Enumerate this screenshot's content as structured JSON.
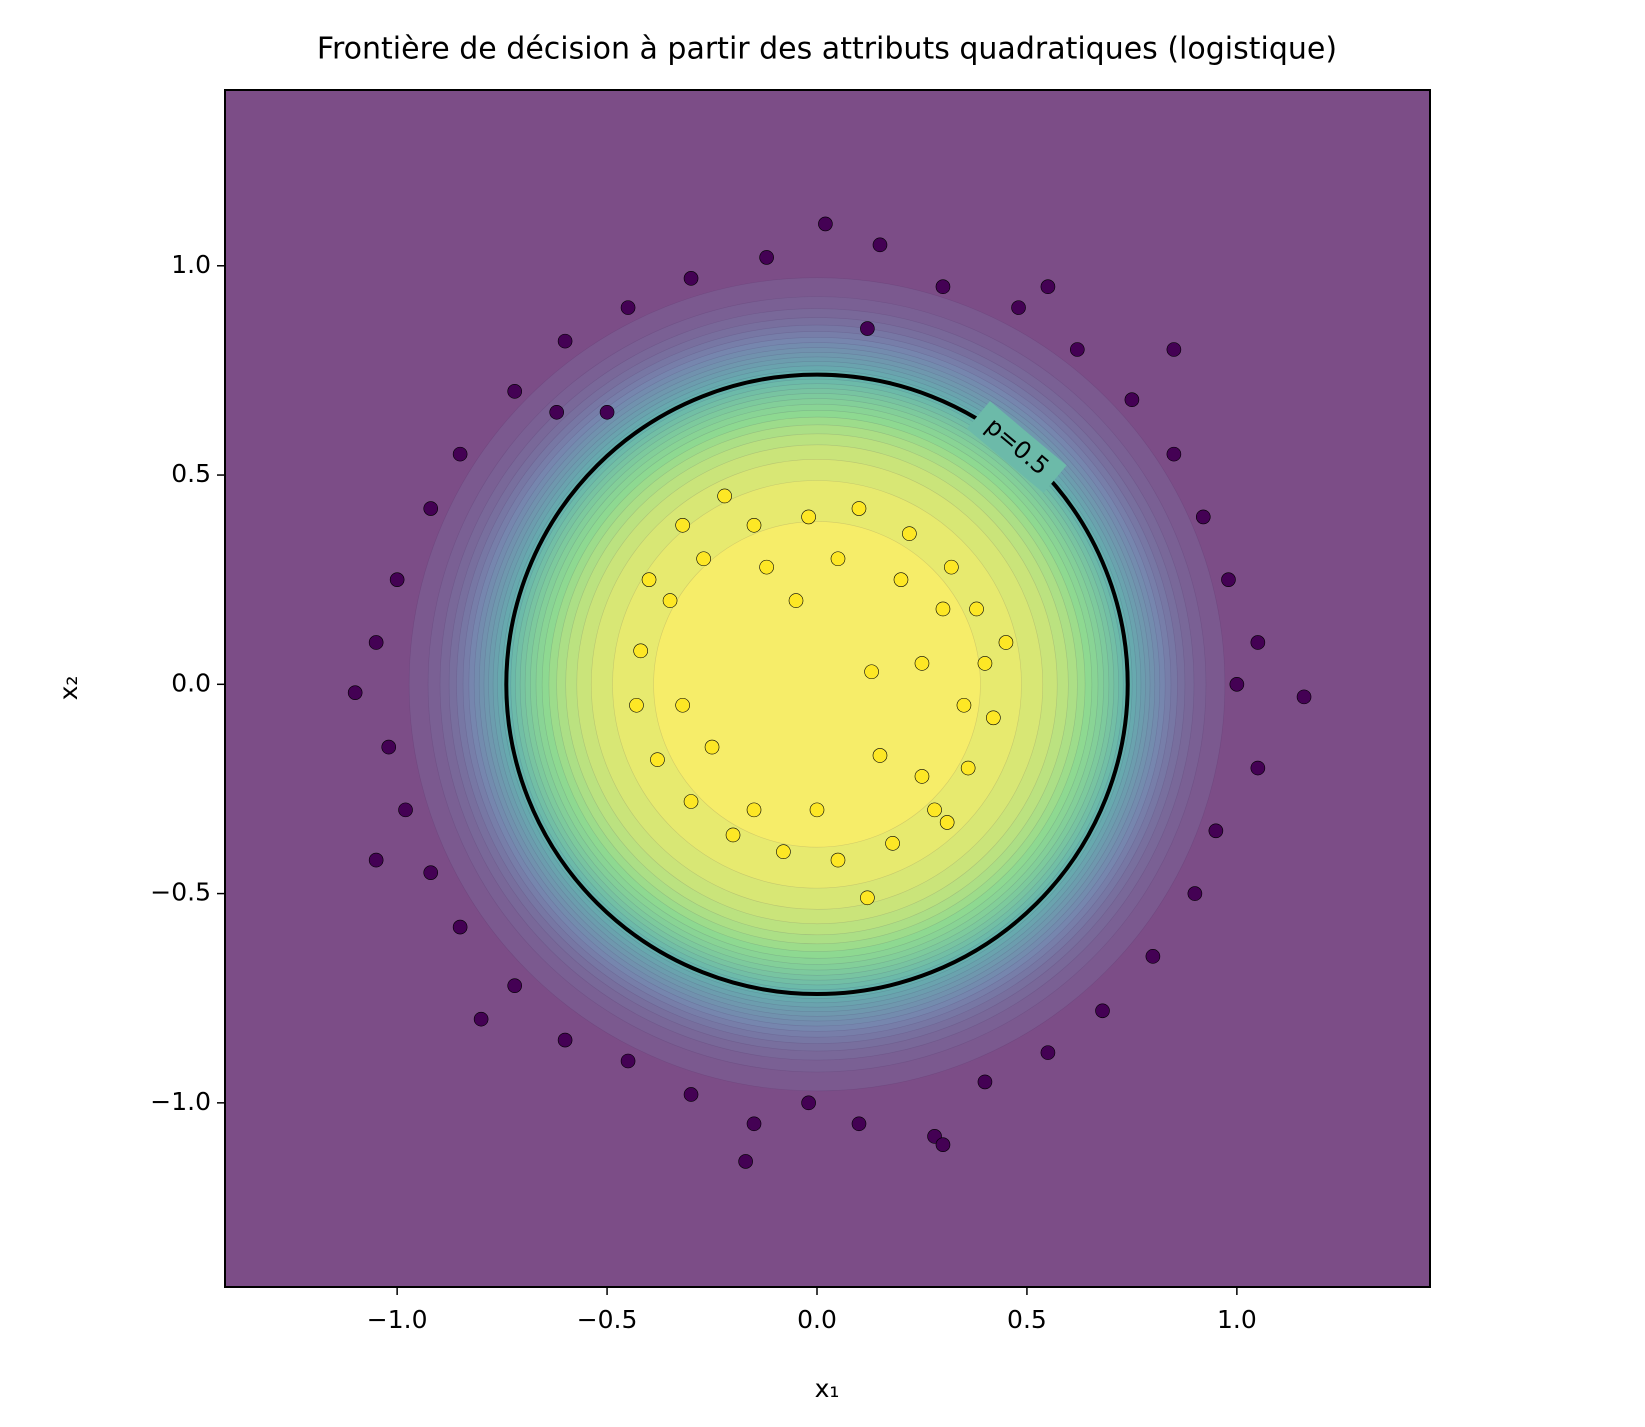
{
  "chart_data": {
    "type": "scatter",
    "title": "Frontière de décision à partir des attributs quadratiques (logistique)",
    "x_label": "x₁",
    "y_label": "x₂",
    "xlim": [
      -1.41,
      1.46
    ],
    "ylim": [
      -1.44,
      1.42
    ],
    "xticks": [
      {
        "value": -1,
        "label": "−1.0"
      },
      {
        "value": -0.5,
        "label": "−0.5"
      },
      {
        "value": 0,
        "label": "0.0"
      },
      0.5,
      {
        "value": 1,
        "label": "1.0"
      }
    ],
    "yticks": [
      {
        "value": -1,
        "label": "−1.0"
      },
      {
        "value": -0.5,
        "label": "−0.5"
      },
      {
        "value": 0,
        "label": "0.0"
      },
      0.5,
      {
        "value": 1,
        "label": "1.0"
      }
    ],
    "decision_boundary": {
      "label": "p=0.5",
      "radius": 0.74
    },
    "series": [
      {
        "color": "#440154",
        "x": [
          1.0,
          1.05,
          0.98,
          0.92,
          0.85,
          0.75,
          0.62,
          0.48,
          0.3,
          0.15,
          0.02,
          -0.12,
          -0.3,
          -0.45,
          -0.6,
          -0.72,
          -0.85,
          -0.92,
          -1.0,
          -1.05,
          -1.1,
          -1.02,
          -0.98,
          -0.92,
          -0.85,
          -0.72,
          -0.6,
          -0.45,
          -0.3,
          -0.15,
          -0.02,
          0.1,
          0.28,
          0.4,
          0.55,
          0.68,
          0.8,
          0.9,
          0.95,
          1.05,
          1.16,
          0.12,
          -0.62,
          -0.8,
          0.85,
          -1.05,
          0.3,
          -0.17,
          0.55,
          -0.5
        ],
        "y": [
          0.0,
          0.1,
          0.25,
          0.4,
          0.55,
          0.68,
          0.8,
          0.9,
          0.95,
          1.05,
          1.1,
          1.02,
          0.97,
          0.9,
          0.82,
          0.7,
          0.55,
          0.42,
          0.25,
          0.1,
          -0.02,
          -0.15,
          -0.3,
          -0.45,
          -0.58,
          -0.72,
          -0.85,
          -0.9,
          -0.98,
          -1.05,
          -1.0,
          -1.05,
          -1.08,
          -0.95,
          -0.88,
          -0.78,
          -0.65,
          -0.5,
          -0.35,
          -0.2,
          -0.03,
          0.85,
          0.65,
          -0.8,
          0.8,
          -0.42,
          -1.1,
          -1.14,
          0.95,
          0.65
        ]
      },
      {
        "color": "#fde725",
        "x": [
          0.4,
          0.38,
          0.32,
          0.22,
          0.1,
          -0.02,
          -0.15,
          -0.27,
          -0.35,
          -0.42,
          -0.43,
          -0.38,
          -0.3,
          -0.2,
          -0.08,
          0.05,
          0.18,
          0.28,
          0.36,
          0.42,
          -0.22,
          -0.32,
          0.12,
          0.13,
          0.15,
          -0.05,
          0.45,
          0.3,
          -0.25,
          0.25,
          -0.4,
          0.2,
          -0.15,
          0.05,
          0.35,
          -0.32,
          0.25,
          -0.12,
          0.0,
          0.31
        ],
        "y": [
          0.05,
          0.18,
          0.28,
          0.36,
          0.42,
          0.4,
          0.38,
          0.3,
          0.2,
          0.08,
          -0.05,
          -0.18,
          -0.28,
          -0.36,
          -0.4,
          -0.42,
          -0.38,
          -0.3,
          -0.2,
          -0.08,
          0.45,
          0.38,
          -0.51,
          0.03,
          -0.17,
          0.2,
          0.1,
          0.18,
          -0.15,
          -0.22,
          0.25,
          0.25,
          -0.3,
          0.3,
          -0.05,
          -0.05,
          0.05,
          0.28,
          -0.3,
          -0.33
        ]
      }
    ]
  }
}
